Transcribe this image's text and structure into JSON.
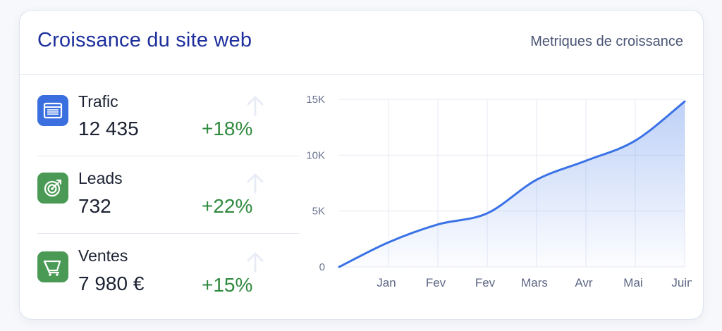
{
  "header": {
    "title": "Croissance du site web",
    "subtitle": "Metriques de croissance"
  },
  "metrics": [
    {
      "label": "Trafic",
      "value": "12 435",
      "delta": "+18%",
      "icon": "browser-window-icon",
      "icon_color": "#3b6fe0"
    },
    {
      "label": "Leads",
      "value": "732",
      "delta": "+22%",
      "icon": "target-icon",
      "icon_color": "#4a9a55"
    },
    {
      "label": "Ventes",
      "value": "7 980 €",
      "delta": "+15%",
      "icon": "shopping-cart-icon",
      "icon_color": "#4a9a55"
    }
  ],
  "colors": {
    "title": "#1d2f9c",
    "positive": "#2f8a3e",
    "line": "#3a72e6",
    "area": "#6e98ee"
  },
  "chart_data": {
    "type": "area",
    "categories": [
      "Jan",
      "Fev",
      "Fev",
      "Mars",
      "Avr",
      "Mai",
      "Juin"
    ],
    "x": [
      0,
      1,
      2,
      3,
      4,
      5,
      6,
      7
    ],
    "values": [
      0,
      2200,
      3800,
      4800,
      7800,
      9500,
      11300,
      14800
    ],
    "yticks": [
      "0",
      "5K",
      "10K",
      "15K"
    ],
    "ylim": [
      0,
      15000
    ],
    "grid": true,
    "title": "",
    "xlabel": "",
    "ylabel": ""
  }
}
